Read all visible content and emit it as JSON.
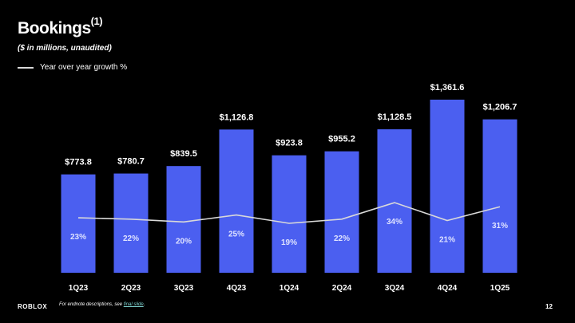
{
  "title": "Bookings",
  "title_sup": "(1)",
  "subtitle": "($ in millions, unaudited)",
  "footer": {
    "logo": "ROBLOX",
    "note_prefix": "For endnote descriptions, see ",
    "note_link": "final slide",
    "note_suffix": ".",
    "page_number": "12"
  },
  "chart_data": {
    "type": "bar",
    "title": "Bookings",
    "categories": [
      "1Q23",
      "2Q23",
      "3Q23",
      "4Q23",
      "1Q24",
      "2Q24",
      "3Q24",
      "4Q24",
      "1Q25"
    ],
    "series": [
      {
        "name": "Bookings ($M)",
        "values": [
          773.8,
          780.7,
          839.5,
          1126.8,
          923.8,
          955.2,
          1128.5,
          1361.6,
          1206.7
        ],
        "labels": [
          "$773.8",
          "$780.7",
          "$839.5",
          "$1,126.8",
          "$923.8",
          "$955.2",
          "$1,128.5",
          "$1,361.6",
          "$1,206.7"
        ]
      },
      {
        "name": "Year over year growth %",
        "type": "line",
        "values": [
          23,
          22,
          20,
          25,
          19,
          22,
          34,
          21,
          31
        ],
        "labels": [
          "23%",
          "22%",
          "20%",
          "25%",
          "19%",
          "22%",
          "34%",
          "21%",
          "31%"
        ]
      }
    ],
    "legend": {
      "label": "Year over year growth %",
      "position": "top-left"
    },
    "colors": {
      "bar": "#4b5ff0",
      "line": "#d9d9d9"
    },
    "grid": false
  }
}
